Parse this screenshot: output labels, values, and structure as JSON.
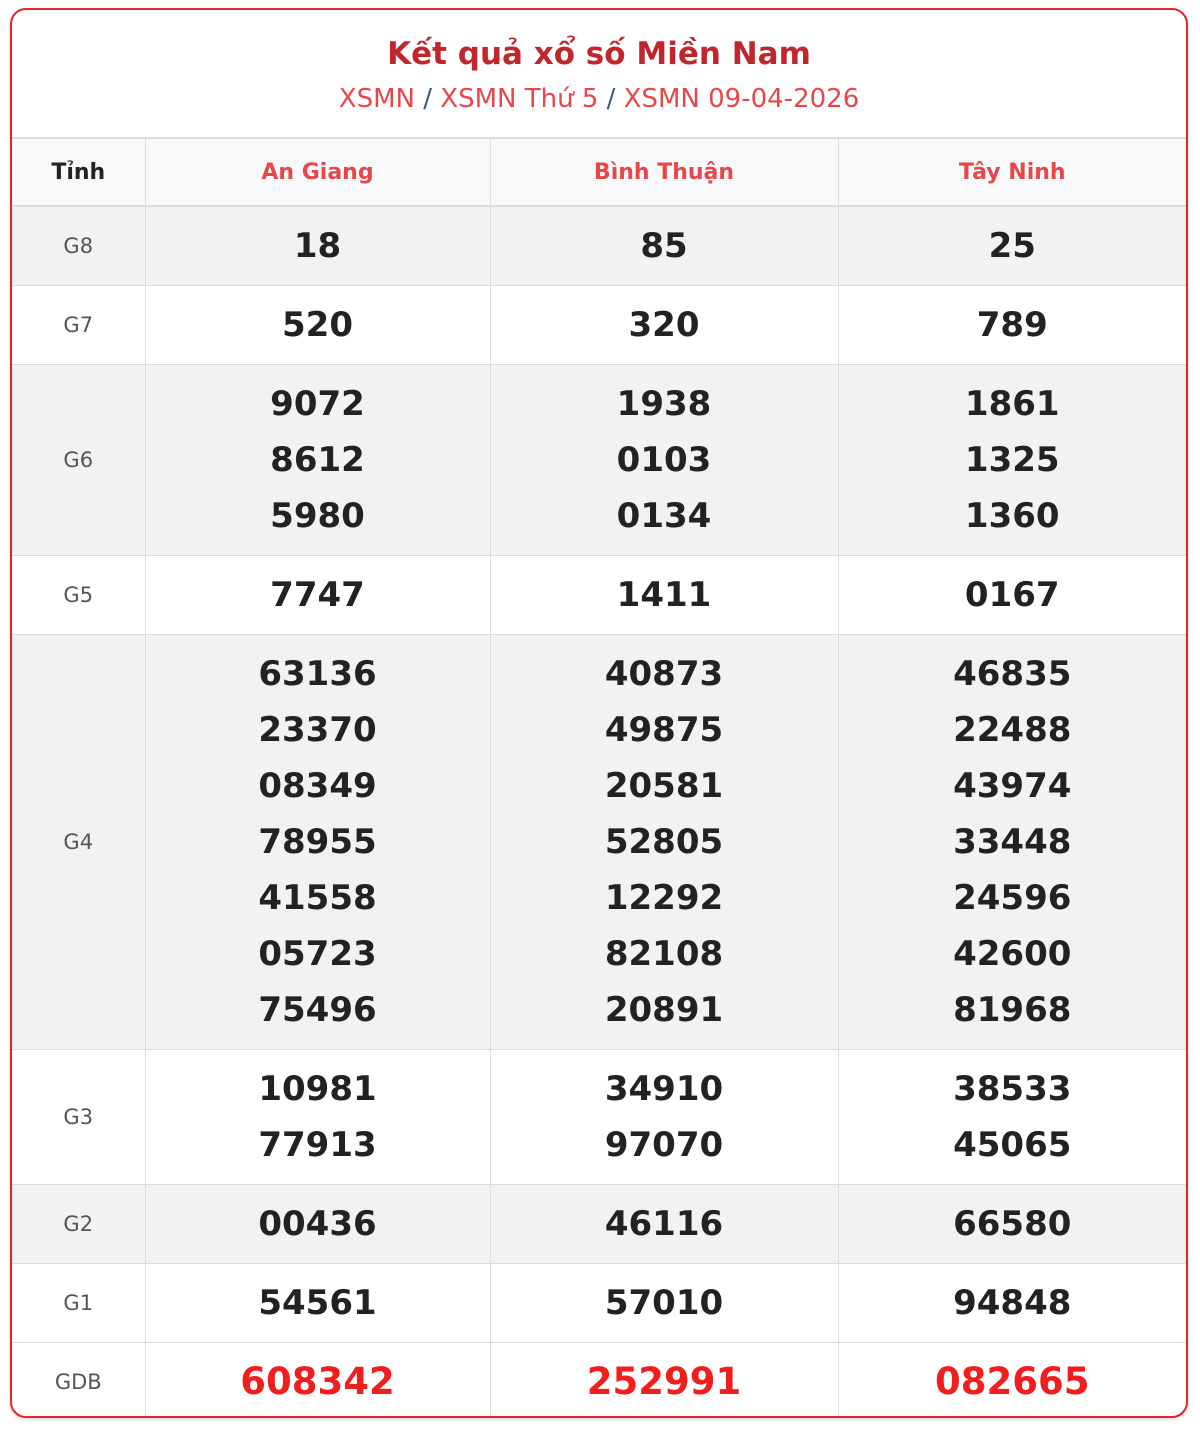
{
  "header": {
    "title": "Kết quả xổ số Miền Nam",
    "breadcrumb": [
      "XSMN",
      "XSMN Thứ 5",
      "XSMN 09-04-2026"
    ],
    "separator": "/"
  },
  "table": {
    "first_col_label": "Tỉnh",
    "provinces": [
      "An Giang",
      "Bình Thuận",
      "Tây Ninh"
    ],
    "rows": [
      {
        "prize": "G8",
        "alt": true,
        "values": [
          [
            "18"
          ],
          [
            "85"
          ],
          [
            "25"
          ]
        ]
      },
      {
        "prize": "G7",
        "alt": false,
        "values": [
          [
            "520"
          ],
          [
            "320"
          ],
          [
            "789"
          ]
        ]
      },
      {
        "prize": "G6",
        "alt": true,
        "values": [
          [
            "9072",
            "8612",
            "5980"
          ],
          [
            "1938",
            "0103",
            "0134"
          ],
          [
            "1861",
            "1325",
            "1360"
          ]
        ]
      },
      {
        "prize": "G5",
        "alt": false,
        "values": [
          [
            "7747"
          ],
          [
            "1411"
          ],
          [
            "0167"
          ]
        ]
      },
      {
        "prize": "G4",
        "alt": true,
        "values": [
          [
            "63136",
            "23370",
            "08349",
            "78955",
            "41558",
            "05723",
            "75496"
          ],
          [
            "40873",
            "49875",
            "20581",
            "52805",
            "12292",
            "82108",
            "20891"
          ],
          [
            "46835",
            "22488",
            "43974",
            "33448",
            "24596",
            "42600",
            "81968"
          ]
        ]
      },
      {
        "prize": "G3",
        "alt": false,
        "values": [
          [
            "10981",
            "77913"
          ],
          [
            "34910",
            "97070"
          ],
          [
            "38533",
            "45065"
          ]
        ]
      },
      {
        "prize": "G2",
        "alt": true,
        "values": [
          [
            "00436"
          ],
          [
            "46116"
          ],
          [
            "66580"
          ]
        ]
      },
      {
        "prize": "G1",
        "alt": false,
        "values": [
          [
            "54561"
          ],
          [
            "57010"
          ],
          [
            "94848"
          ]
        ]
      },
      {
        "prize": "GDB",
        "alt": false,
        "special": true,
        "values": [
          [
            "608342"
          ],
          [
            "252991"
          ],
          [
            "082665"
          ]
        ]
      }
    ]
  },
  "colors": {
    "border": "#e8232a",
    "title": "#c0272d",
    "link": "#e8474a",
    "special": "#f21d1d"
  }
}
